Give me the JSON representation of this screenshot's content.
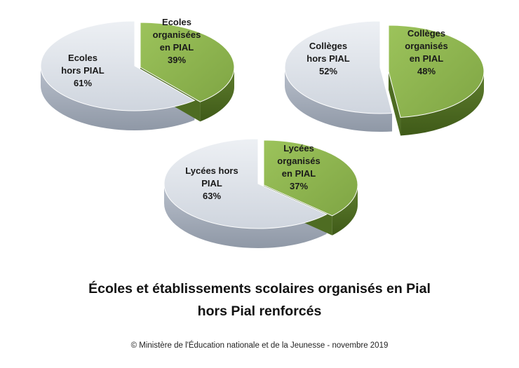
{
  "title": {
    "line1": "Écoles et établissements scolaires organisés en Pial",
    "line2": "hors Pial renforcés"
  },
  "source": "© Ministère de l'Éducation nationale et de la Jeunesse - novembre 2019",
  "colors": {
    "pial": "#8db44e",
    "hors_pial": "#d9dee6"
  },
  "chart_data": [
    {
      "type": "pie",
      "slices": [
        {
          "label_lines": [
            "Ecoles",
            "organisées",
            "en PIAL",
            "39%"
          ],
          "value": 39
        },
        {
          "label_lines": [
            "Ecoles",
            "hors PIAL",
            "61%"
          ],
          "value": 61
        }
      ]
    },
    {
      "type": "pie",
      "slices": [
        {
          "label_lines": [
            "Collèges",
            "organisés",
            "en PIAL",
            "48%"
          ],
          "value": 48
        },
        {
          "label_lines": [
            "Collèges",
            "hors PIAL",
            "52%"
          ],
          "value": 52
        }
      ]
    },
    {
      "type": "pie",
      "slices": [
        {
          "label_lines": [
            "Lycées",
            "organisés",
            "en PIAL",
            "37%"
          ],
          "value": 37
        },
        {
          "label_lines": [
            "Lycées hors",
            "PIAL",
            "63%"
          ],
          "value": 63
        }
      ]
    }
  ]
}
